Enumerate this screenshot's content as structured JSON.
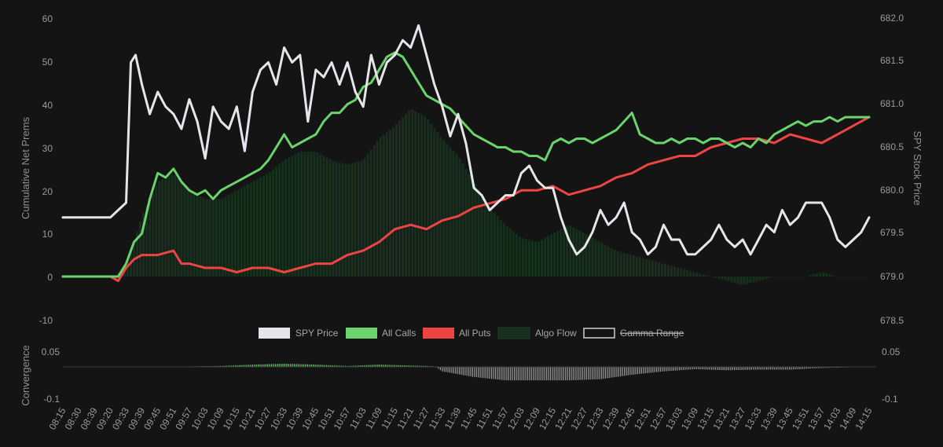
{
  "chart_data": [
    {
      "type": "line",
      "title": "",
      "y_left_label": "Cumulative Net Prems",
      "y_right_label": "SPY Stock Price",
      "y_left_ticks": [
        "60",
        "50",
        "40",
        "30",
        "20",
        "10",
        "0",
        "-10"
      ],
      "y_left_range": [
        -10,
        60
      ],
      "y_right_ticks": [
        "682.0",
        "681.5",
        "681.0",
        "680.5",
        "680.0",
        "679.5",
        "679.0",
        "678.5"
      ],
      "y_right_range": [
        678.5,
        682.0
      ],
      "x_ticks": [
        "08:15",
        "08:30",
        "08:39",
        "09:20",
        "09:33",
        "09:39",
        "09:45",
        "09:51",
        "09:57",
        "10:03",
        "10:09",
        "10:15",
        "10:21",
        "10:27",
        "10:33",
        "10:39",
        "10:45",
        "10:51",
        "10:57",
        "11:03",
        "11:09",
        "11:15",
        "11:21",
        "11:27",
        "11:33",
        "11:39",
        "11:45",
        "11:51",
        "11:57",
        "12:03",
        "12:09",
        "12:15",
        "12:21",
        "12:27",
        "12:33",
        "12:39",
        "12:45",
        "12:51",
        "12:57",
        "13:03",
        "13:09",
        "13:15",
        "13:21",
        "13:27",
        "13:33",
        "13:39",
        "13:45",
        "13:51",
        "13:57",
        "14:03",
        "14:09",
        "14:15"
      ],
      "legend": [
        {
          "label": "SPY Price",
          "color": "#e6e6ea",
          "style": "filled"
        },
        {
          "label": "All Calls",
          "color": "#6bd36b",
          "style": "filled"
        },
        {
          "label": "All Puts",
          "color": "#ee4444",
          "style": "filled"
        },
        {
          "label": "Algo Flow",
          "color": "#17301d",
          "style": "filled"
        },
        {
          "label": "Gamma Range",
          "color": "#cfcfcf",
          "style": "hidden"
        }
      ],
      "series": [
        {
          "name": "SPY Price",
          "axis": "right",
          "color": "#e6e6ea",
          "x": [
            0,
            3,
            4,
            4.3,
            4.6,
            5,
            5.5,
            6,
            6.5,
            7,
            7.5,
            8,
            8.5,
            9,
            9.5,
            10,
            10.5,
            11,
            11.5,
            12,
            12.5,
            13,
            13.5,
            14,
            14.5,
            15,
            15.5,
            16,
            16.5,
            17,
            17.5,
            18,
            18.5,
            19,
            19.5,
            20,
            20.5,
            21,
            21.5,
            22,
            22.5,
            23,
            23.5,
            24,
            24.5,
            25,
            25.5,
            26,
            26.5,
            27,
            27.5,
            28,
            28.5,
            29,
            29.5,
            30,
            30.5,
            31,
            31.5,
            32,
            32.5,
            33,
            33.5,
            34,
            34.5,
            35,
            35.5,
            36,
            36.5,
            37,
            37.5,
            38,
            38.5,
            39,
            39.5,
            40,
            40.5,
            41,
            41.5,
            42,
            42.5,
            43,
            43.5,
            44,
            44.5,
            45,
            45.5,
            46,
            46.5,
            47,
            47.5,
            48,
            48.5,
            49,
            49.5,
            50,
            50.5,
            51
          ],
          "values": [
            679.3,
            679.3,
            679.5,
            681.4,
            681.5,
            681.1,
            680.7,
            681.0,
            680.8,
            680.7,
            680.5,
            680.9,
            680.6,
            680.1,
            680.8,
            680.6,
            680.5,
            680.8,
            680.2,
            681.0,
            681.3,
            681.4,
            681.1,
            681.6,
            681.4,
            681.5,
            680.6,
            681.3,
            681.2,
            681.4,
            681.1,
            681.4,
            681.0,
            680.8,
            681.5,
            681.1,
            681.4,
            681.5,
            681.7,
            681.6,
            681.9,
            681.5,
            681.1,
            680.8,
            680.4,
            680.7,
            680.3,
            679.7,
            679.6,
            679.4,
            679.5,
            679.6,
            679.6,
            679.9,
            680.0,
            679.8,
            679.7,
            679.7,
            679.3,
            679.0,
            678.8,
            678.9,
            679.1,
            679.4,
            679.2,
            679.3,
            679.5,
            679.1,
            679.0,
            678.8,
            678.9,
            679.2,
            679.0,
            679.0,
            678.8,
            678.8,
            678.9,
            679.0,
            679.2,
            679.0,
            678.9,
            679.0,
            678.8,
            679.0,
            679.2,
            679.1,
            679.4,
            679.2,
            679.3,
            679.5,
            679.5,
            679.5,
            679.3,
            679.0,
            678.9,
            679.0,
            679.1,
            679.3
          ]
        },
        {
          "name": "All Calls",
          "axis": "left",
          "color": "#6bd36b",
          "x": [
            0,
            3,
            3.5,
            4,
            4.5,
            5,
            5.5,
            6,
            6.5,
            7,
            7.5,
            8,
            8.5,
            9,
            9.5,
            10,
            10.5,
            11,
            11.5,
            12,
            12.5,
            13,
            13.5,
            14,
            14.5,
            15,
            15.5,
            16,
            16.5,
            17,
            17.5,
            18,
            18.5,
            19,
            19.5,
            20,
            20.5,
            21,
            21.5,
            22,
            22.5,
            23,
            23.5,
            24,
            24.5,
            25,
            25.5,
            26,
            26.5,
            27,
            27.5,
            28,
            28.5,
            29,
            29.5,
            30,
            30.5,
            31,
            31.5,
            32,
            32.5,
            33,
            33.5,
            34,
            34.5,
            35,
            35.5,
            36,
            36.5,
            37,
            37.5,
            38,
            38.5,
            39,
            39.5,
            40,
            40.5,
            41,
            41.5,
            42,
            42.5,
            43,
            43.5,
            44,
            44.5,
            45,
            45.5,
            46,
            46.5,
            47,
            47.5,
            48,
            48.5,
            49,
            49.5,
            50,
            50.5,
            51
          ],
          "values": [
            0,
            0,
            0,
            3,
            8,
            10,
            18,
            24,
            23,
            25,
            22,
            20,
            19,
            20,
            18,
            20,
            21,
            22,
            23,
            24,
            25,
            27,
            30,
            33,
            30,
            31,
            32,
            33,
            36,
            38,
            38,
            40,
            41,
            44,
            45,
            48,
            51,
            52,
            51,
            48,
            45,
            42,
            41,
            40,
            39,
            37,
            35,
            33,
            32,
            31,
            30,
            30,
            29,
            29,
            28,
            28,
            27,
            31,
            32,
            31,
            32,
            32,
            31,
            32,
            33,
            34,
            36,
            38,
            33,
            32,
            31,
            31,
            32,
            31,
            32,
            32,
            31,
            32,
            32,
            31,
            30,
            31,
            30,
            32,
            31,
            33,
            34,
            35,
            36,
            35,
            36,
            36,
            37,
            36,
            37,
            37,
            37,
            37
          ]
        },
        {
          "name": "All Puts",
          "axis": "left",
          "color": "#ee4444",
          "x": [
            0,
            3,
            3.5,
            4,
            4.5,
            5,
            6,
            7,
            7.5,
            8,
            9,
            10,
            11,
            12,
            13,
            14,
            15,
            16,
            17,
            18,
            19,
            20,
            21,
            22,
            23,
            24,
            25,
            26,
            27,
            28,
            29,
            30,
            31,
            32,
            33,
            34,
            35,
            36,
            37,
            38,
            39,
            40,
            41,
            42,
            43,
            44,
            45,
            46,
            47,
            48,
            49,
            50,
            51
          ],
          "values": [
            0,
            0,
            -1,
            2,
            4,
            5,
            5,
            6,
            3,
            3,
            2,
            2,
            1,
            2,
            2,
            1,
            2,
            3,
            3,
            5,
            6,
            8,
            11,
            12,
            11,
            13,
            14,
            16,
            17,
            18,
            20,
            20,
            21,
            19,
            20,
            21,
            23,
            24,
            26,
            27,
            28,
            28,
            30,
            31,
            32,
            32,
            31,
            33,
            32,
            31,
            33,
            35,
            37
          ]
        },
        {
          "name": "Algo Flow",
          "axis": "left",
          "color": "#17301d",
          "type": "bar",
          "x": [
            3.5,
            4,
            4.5,
            5,
            6,
            7,
            8,
            9,
            10,
            11,
            12,
            13,
            14,
            15,
            16,
            17,
            18,
            19,
            20,
            21,
            22,
            23,
            24,
            25,
            26,
            27,
            28,
            29,
            30,
            31,
            32,
            33,
            34,
            35,
            36,
            37,
            38,
            39,
            40,
            41,
            42,
            43,
            44,
            45,
            46,
            47,
            48,
            49,
            50,
            51
          ],
          "values": [
            1,
            3,
            8,
            14,
            22,
            24,
            20,
            18,
            18,
            20,
            22,
            24,
            27,
            29,
            29,
            27,
            26,
            27,
            32,
            35,
            39,
            37,
            32,
            28,
            22,
            16,
            12,
            9,
            8,
            10,
            12,
            10,
            8,
            6,
            5,
            4,
            3,
            2,
            1,
            0,
            -1,
            -2,
            -1,
            0,
            0,
            0,
            1,
            0,
            0,
            0
          ]
        }
      ]
    },
    {
      "type": "bar",
      "title": "",
      "y_label": "Convergence",
      "y_ticks": [
        "0.05",
        "-0.1"
      ],
      "y_range": [
        -0.1,
        0.05
      ],
      "series": [
        {
          "name": "Convergence",
          "color_positive": "#6bd36b",
          "color_negative": "#9a9a9a",
          "x": [
            0,
            4,
            6,
            8,
            10,
            12,
            14,
            16,
            18,
            20,
            22,
            23.5,
            24,
            26,
            28,
            30,
            32,
            34,
            36,
            38,
            40,
            42,
            44,
            46,
            48,
            51
          ],
          "values": [
            0,
            0,
            0,
            0.002,
            0.004,
            0.01,
            0.014,
            0.01,
            0.004,
            0.01,
            0.006,
            0.003,
            -0.02,
            -0.045,
            -0.06,
            -0.06,
            -0.06,
            -0.055,
            -0.035,
            -0.02,
            -0.01,
            -0.015,
            -0.012,
            -0.012,
            -0.005,
            0
          ]
        }
      ]
    }
  ]
}
